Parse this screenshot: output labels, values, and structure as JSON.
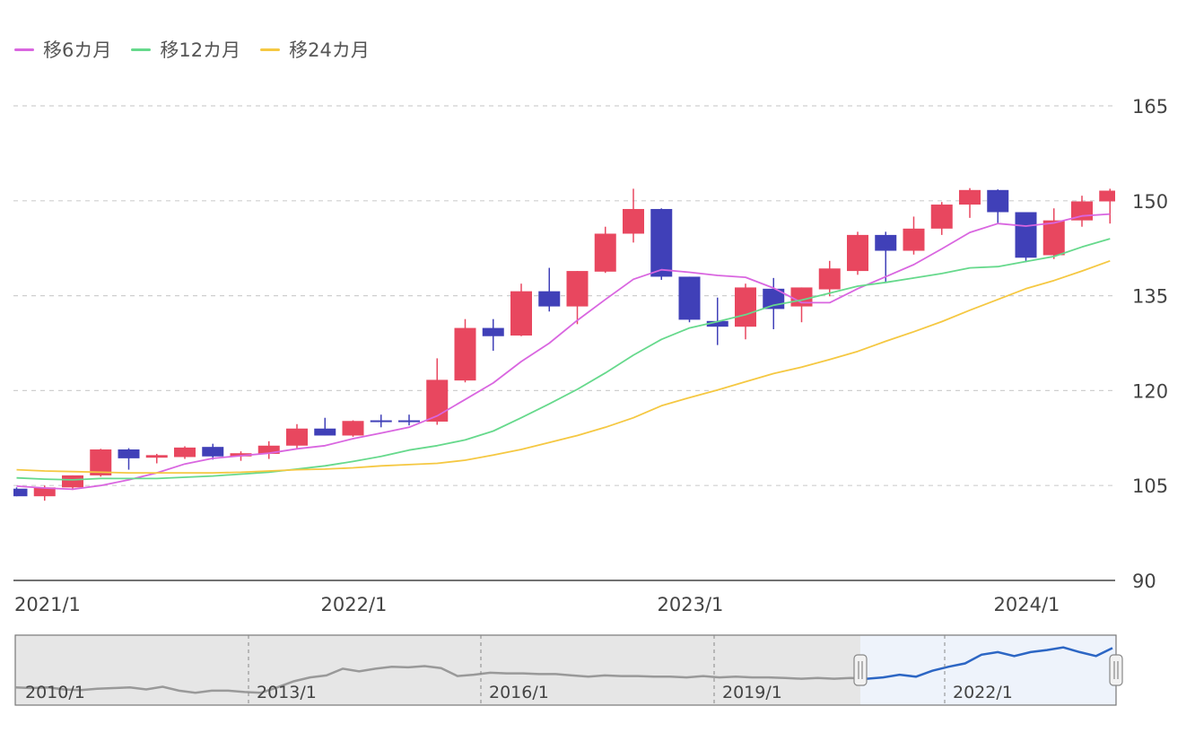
{
  "legend": [
    {
      "label": "移6カ月",
      "color": "#d966e0"
    },
    {
      "label": "移12カ月",
      "color": "#66d98c"
    },
    {
      "label": "移24カ月",
      "color": "#f5c842"
    }
  ],
  "chart_data": [
    {
      "type": "candlestick",
      "y_ticks": [
        "165",
        "150",
        "135",
        "120",
        "105",
        "90"
      ],
      "ylim": [
        90,
        165
      ],
      "x_ticks": [
        "2021/1",
        "2022/1",
        "2023/1",
        "2024/1"
      ],
      "grid": true,
      "legend_position": "top-left",
      "up_color": "#e8475f",
      "down_color": "#4040b8",
      "candles": [
        {
          "open": 104.5,
          "high": 104.7,
          "low": 103.3,
          "close": 103.3
        },
        {
          "open": 103.3,
          "high": 105.0,
          "low": 102.6,
          "close": 104.7
        },
        {
          "open": 104.7,
          "high": 106.6,
          "low": 104.3,
          "close": 106.6
        },
        {
          "open": 106.6,
          "high": 110.8,
          "low": 106.4,
          "close": 110.7
        },
        {
          "open": 110.7,
          "high": 110.9,
          "low": 107.5,
          "close": 109.3
        },
        {
          "open": 109.4,
          "high": 110.0,
          "low": 108.5,
          "close": 109.8
        },
        {
          "open": 109.5,
          "high": 111.2,
          "low": 109.2,
          "close": 111.0
        },
        {
          "open": 111.1,
          "high": 111.6,
          "low": 109.1,
          "close": 109.6
        },
        {
          "open": 109.6,
          "high": 110.4,
          "low": 108.9,
          "close": 110.1
        },
        {
          "open": 110.0,
          "high": 112.0,
          "low": 109.2,
          "close": 111.3
        },
        {
          "open": 111.3,
          "high": 114.7,
          "low": 110.9,
          "close": 114.0
        },
        {
          "open": 114.0,
          "high": 115.7,
          "low": 112.9,
          "close": 112.9
        },
        {
          "open": 112.9,
          "high": 115.3,
          "low": 112.7,
          "close": 115.2
        },
        {
          "open": 115.3,
          "high": 116.2,
          "low": 114.2,
          "close": 115.2
        },
        {
          "open": 115.3,
          "high": 116.2,
          "low": 114.5,
          "close": 115.2
        },
        {
          "open": 115.1,
          "high": 125.1,
          "low": 114.6,
          "close": 121.7
        },
        {
          "open": 121.6,
          "high": 131.3,
          "low": 121.3,
          "close": 129.9
        },
        {
          "open": 129.9,
          "high": 131.3,
          "low": 126.3,
          "close": 128.6
        },
        {
          "open": 128.7,
          "high": 136.9,
          "low": 128.6,
          "close": 135.7
        },
        {
          "open": 135.7,
          "high": 139.4,
          "low": 132.5,
          "close": 133.3
        },
        {
          "open": 133.3,
          "high": 138.9,
          "low": 130.5,
          "close": 138.9
        },
        {
          "open": 138.8,
          "high": 145.9,
          "low": 138.6,
          "close": 144.8
        },
        {
          "open": 144.8,
          "high": 151.9,
          "low": 143.4,
          "close": 148.7
        },
        {
          "open": 148.7,
          "high": 148.8,
          "low": 137.5,
          "close": 138.0
        },
        {
          "open": 138.0,
          "high": 138.0,
          "low": 130.8,
          "close": 131.2
        },
        {
          "open": 131.0,
          "high": 134.7,
          "low": 127.2,
          "close": 130.1
        },
        {
          "open": 130.1,
          "high": 136.9,
          "low": 128.1,
          "close": 136.3
        },
        {
          "open": 136.1,
          "high": 137.8,
          "low": 129.7,
          "close": 132.9
        },
        {
          "open": 133.3,
          "high": 136.3,
          "low": 130.8,
          "close": 136.3
        },
        {
          "open": 136.0,
          "high": 140.5,
          "low": 134.9,
          "close": 139.3
        },
        {
          "open": 138.9,
          "high": 145.1,
          "low": 138.3,
          "close": 144.6
        },
        {
          "open": 144.6,
          "high": 145.1,
          "low": 137.2,
          "close": 142.1
        },
        {
          "open": 142.1,
          "high": 147.5,
          "low": 141.5,
          "close": 145.6
        },
        {
          "open": 145.6,
          "high": 149.8,
          "low": 144.6,
          "close": 149.4
        },
        {
          "open": 149.4,
          "high": 152.0,
          "low": 147.3,
          "close": 151.7
        },
        {
          "open": 151.7,
          "high": 151.8,
          "low": 146.5,
          "close": 148.2
        },
        {
          "open": 148.2,
          "high": 148.2,
          "low": 140.3,
          "close": 141.0
        },
        {
          "open": 141.4,
          "high": 148.8,
          "low": 140.8,
          "close": 146.9
        },
        {
          "open": 146.9,
          "high": 150.8,
          "low": 145.9,
          "close": 149.9
        },
        {
          "open": 149.9,
          "high": 151.9,
          "low": 146.4,
          "close": 151.6
        }
      ],
      "series": [
        {
          "name": "移6カ月",
          "color": "#d966e0",
          "values": [
            104.9,
            104.6,
            104.4,
            105.0,
            105.9,
            107.0,
            108.4,
            109.3,
            109.7,
            110.1,
            110.8,
            111.3,
            112.4,
            113.3,
            114.2,
            116.0,
            118.6,
            121.2,
            124.6,
            127.5,
            131.1,
            134.4,
            137.6,
            139.1,
            138.7,
            138.2,
            137.9,
            136.2,
            133.9,
            133.9,
            136.1,
            138.0,
            139.9,
            142.4,
            145.0,
            146.4,
            146.0,
            146.5,
            147.6,
            147.9
          ]
        },
        {
          "name": "移12カ月",
          "color": "#66d98c",
          "values": [
            106.2,
            106.0,
            105.9,
            106.1,
            106.1,
            106.1,
            106.3,
            106.5,
            106.8,
            107.1,
            107.6,
            108.1,
            108.8,
            109.6,
            110.6,
            111.3,
            112.2,
            113.6,
            115.7,
            117.9,
            120.2,
            122.8,
            125.6,
            128.1,
            129.9,
            130.9,
            132.0,
            133.5,
            134.3,
            135.4,
            136.5,
            137.1,
            137.8,
            138.5,
            139.4,
            139.6,
            140.4,
            141.2,
            142.7,
            144.0
          ]
        },
        {
          "name": "移24カ月",
          "color": "#f5c842",
          "values": [
            107.5,
            107.3,
            107.2,
            107.1,
            107.0,
            107.0,
            107.0,
            107.0,
            107.1,
            107.3,
            107.5,
            107.6,
            107.8,
            108.1,
            108.3,
            108.5,
            109.0,
            109.8,
            110.7,
            111.8,
            112.9,
            114.2,
            115.7,
            117.6,
            118.9,
            120.1,
            121.4,
            122.7,
            123.7,
            124.9,
            126.2,
            127.8,
            129.3,
            130.9,
            132.7,
            134.4,
            136.1,
            137.4,
            138.9,
            140.5
          ]
        }
      ]
    },
    {
      "type": "line",
      "role": "navigator",
      "x_ticks": [
        "2010/1",
        "2013/1",
        "2016/1",
        "2019/1",
        "2022/1"
      ],
      "selection": {
        "from": "2021/1",
        "to": "2024/1"
      },
      "line_color": "#999999",
      "selected_line_color": "#2c66c4",
      "values": [
        92,
        91,
        92,
        89,
        88,
        90,
        91,
        92,
        89,
        93,
        87,
        84,
        87,
        87,
        85,
        84,
        92,
        101,
        107,
        110,
        120,
        116,
        120,
        123,
        122,
        124,
        121,
        109,
        111,
        114,
        113,
        113,
        112,
        112,
        110,
        108,
        110,
        109,
        109,
        108,
        108,
        107,
        109,
        107,
        108,
        107,
        107,
        106,
        105,
        106,
        105,
        106,
        105,
        107,
        111,
        108,
        117,
        123,
        128,
        141,
        145,
        139,
        145,
        148,
        152,
        145,
        139,
        151
      ]
    }
  ]
}
